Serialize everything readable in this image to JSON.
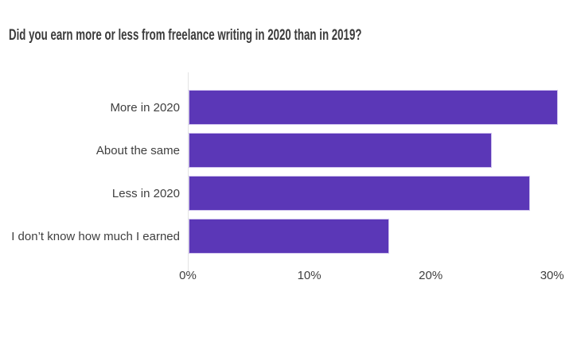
{
  "chart_data": {
    "type": "bar",
    "orientation": "horizontal",
    "title": "Did you earn more or less from freelance writing in 2020 than in 2019?",
    "categories": [
      "More in 2020",
      "About the same",
      "Less in 2020",
      "I don’t know how much I earned"
    ],
    "values": [
      30.4,
      25.0,
      28.1,
      16.5
    ],
    "xlabel": "",
    "ylabel": "",
    "xlim": [
      0,
      31
    ],
    "xticks": [
      0,
      10,
      20,
      30
    ],
    "xtick_labels": [
      "0%",
      "10%",
      "20%",
      "30%"
    ],
    "grid": false,
    "legend": false,
    "colors": {
      "bar_fill": "#5b37b7",
      "bar_border": "#cfc2ee",
      "axis_line": "#e3e3e3",
      "text": "#3f3f3f",
      "title_text": "#3b3b3b",
      "background": "#ffffff"
    }
  }
}
